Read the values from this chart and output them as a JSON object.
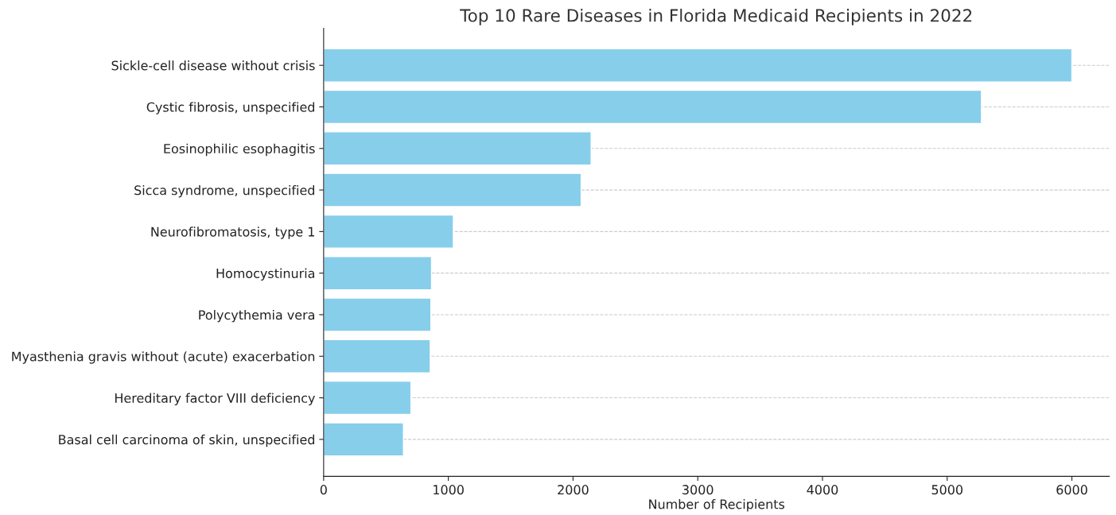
{
  "chart_data": {
    "type": "bar",
    "orientation": "horizontal",
    "title": "Top 10 Rare Diseases in Florida Medicaid Recipients in 2022",
    "xlabel": "Number of Recipients",
    "categories": [
      "Sickle-cell disease without crisis",
      "Cystic fibrosis, unspecified",
      "Eosinophilic esophagitis",
      "Sicca syndrome, unspecified",
      "Neurofibromatosis, type 1",
      "Homocystinuria",
      "Polycythemia vera",
      "Myasthenia gravis without (acute) exacerbation",
      "Hereditary factor VIII deficiency",
      "Basal cell carcinoma of skin, unspecified"
    ],
    "values": [
      6000,
      5275,
      2145,
      2065,
      1040,
      865,
      860,
      855,
      700,
      640
    ],
    "color": "#87ceeb",
    "xlim": [
      0,
      6300
    ],
    "xticks": [
      0,
      1000,
      2000,
      3000,
      4000,
      5000,
      6000
    ],
    "grid": "y"
  }
}
